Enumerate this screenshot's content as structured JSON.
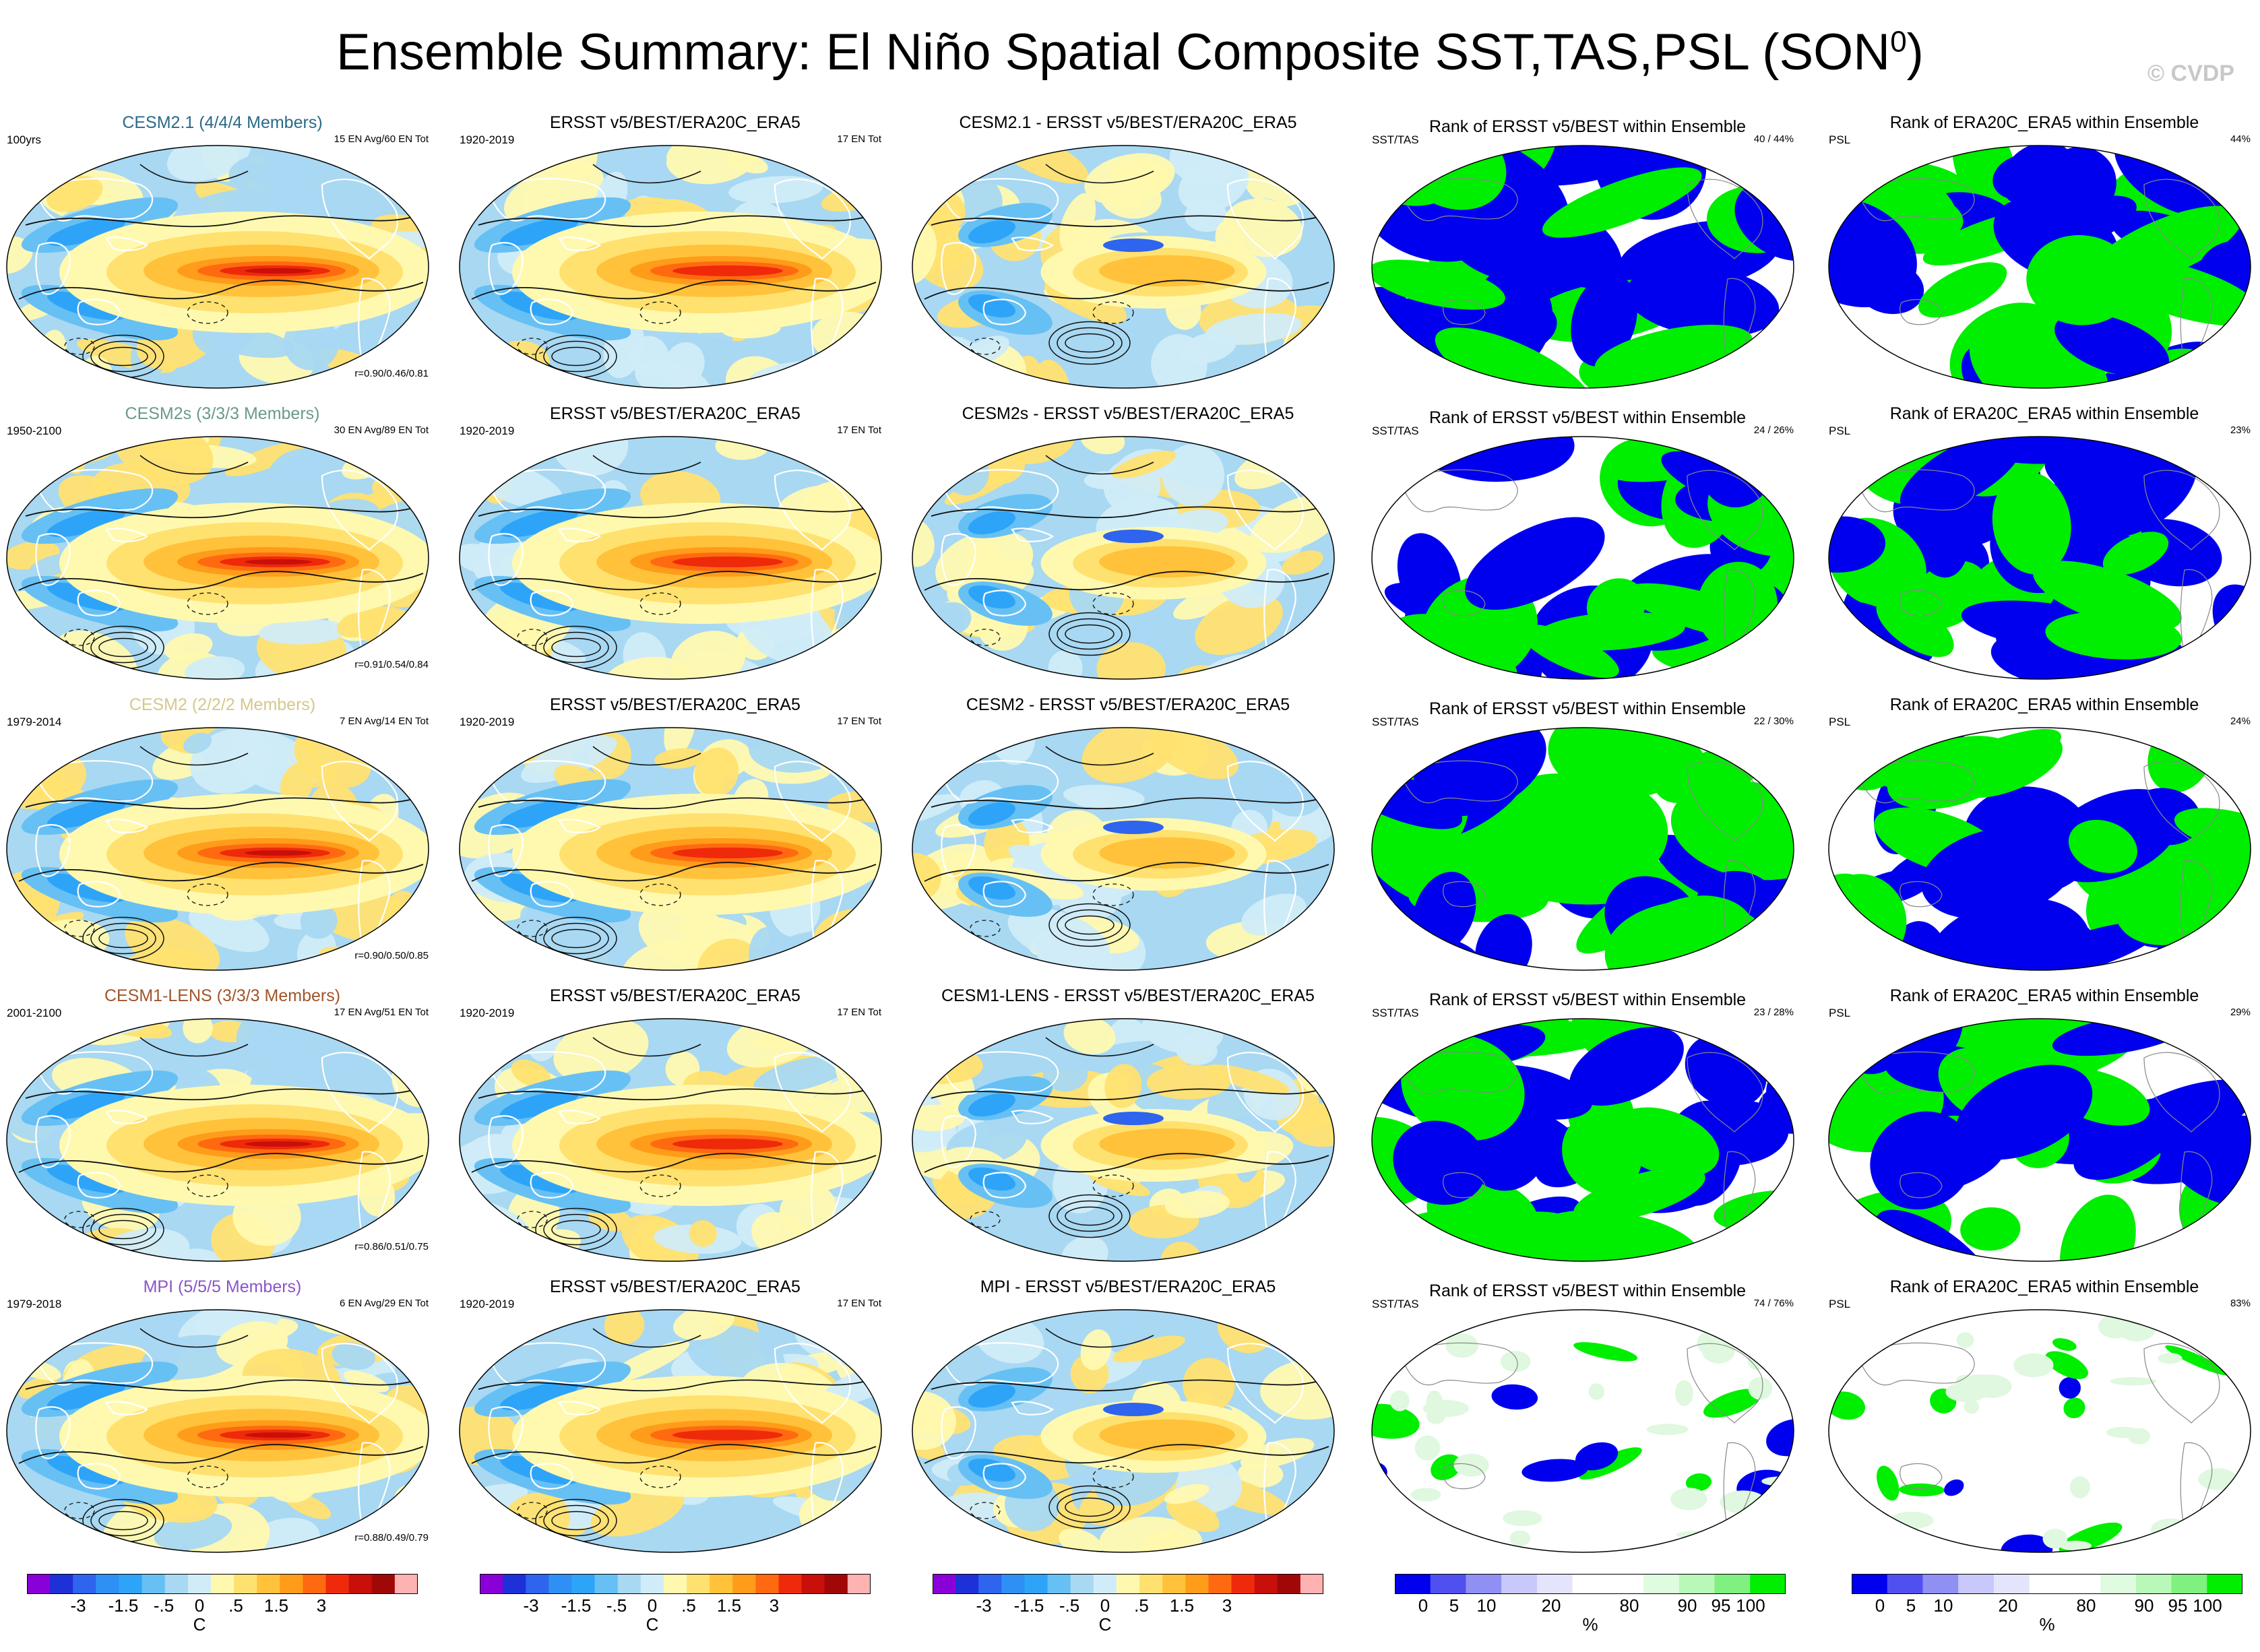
{
  "title": {
    "main": "Ensemble Summary: El Niño Spatial Composite SST,TAS,PSL (SON",
    "sup": "0",
    "close": ")"
  },
  "copyright": "© CVDP",
  "colors": {
    "cesm21": "#2a6a8a",
    "cesm2s": "#6a9a8a",
    "cesm2": "#d6c88a",
    "cesm1": "#a0552a",
    "mpi": "#8a55c8",
    "warm": [
      "#fff9b0",
      "#ffe170",
      "#ffc23a",
      "#ff9c1a",
      "#ff6a10",
      "#ee2a0a",
      "#c80f0a",
      "#a00808",
      "#ffb2b2"
    ],
    "cool": [
      "#9000d0",
      "#1e30d8",
      "#2e64ee",
      "#2ea4f8",
      "#66c0f4",
      "#a8d8f2",
      "#d0ecf8"
    ],
    "rank": {
      "low": "#0000ee",
      "mid": "#ffffff",
      "high": "#00ee00"
    }
  },
  "rows": [
    {
      "model_label": "CESM2.1 (4/4/4 Members)",
      "model_color": "#2a6a8a",
      "diff_name": "CESM2.1",
      "period": "100yrs",
      "en_info": "15 EN Avg/60 EN Tot",
      "corr": "r=0.90/0.46/0.81",
      "obs_period": "1920-2019",
      "obs_en": "17 EN Tot",
      "rank_sst": "40 /  44%",
      "rank_psl": "44%"
    },
    {
      "model_label": "CESM2s (3/3/3 Members)",
      "model_color": "#6a9a8a",
      "diff_name": "CESM2s",
      "period": "1950-2100",
      "en_info": "30 EN Avg/89 EN Tot",
      "corr": "r=0.91/0.54/0.84",
      "obs_period": "1920-2019",
      "obs_en": "17 EN Tot",
      "rank_sst": "24 /  26%",
      "rank_psl": "23%"
    },
    {
      "model_label": "CESM2 (2/2/2 Members)",
      "model_color": "#d6c88a",
      "diff_name": "CESM2",
      "period": "1979-2014",
      "en_info": "7 EN Avg/14 EN Tot",
      "corr": "r=0.90/0.50/0.85",
      "obs_period": "1920-2019",
      "obs_en": "17 EN Tot",
      "rank_sst": "22 /  30%",
      "rank_psl": "24%"
    },
    {
      "model_label": "CESM1-LENS (3/3/3 Members)",
      "model_color": "#a0552a",
      "diff_name": "CESM1-LENS",
      "period": "2001-2100",
      "en_info": "17 EN Avg/51 EN Tot",
      "corr": "r=0.86/0.51/0.75",
      "obs_period": "1920-2019",
      "obs_en": "17 EN Tot",
      "rank_sst": "23 /  28%",
      "rank_psl": "29%"
    },
    {
      "model_label": "MPI (5/5/5 Members)",
      "model_color": "#8a55c8",
      "diff_name": "MPI",
      "period": "1979-2018",
      "en_info": "6 EN Avg/29 EN Tot",
      "corr": "r=0.88/0.49/0.79",
      "obs_period": "1920-2019",
      "obs_en": "17 EN Tot",
      "rank_sst": "74 /  76%",
      "rank_psl": "83%"
    }
  ],
  "obs_title": "ERSST v5/BEST/ERA20C_ERA5",
  "diff_suffix": " - ERSST v5/BEST/ERA20C_ERA5",
  "rank_sst_title": "Rank of ERSST v5/BEST within Ensemble",
  "rank_psl_title": "Rank of ERA20C_ERA5 within Ensemble",
  "rank_sst_label": "SST/TAS",
  "rank_psl_label": "PSL",
  "colorbar_temp": {
    "ticks": [
      "-3",
      "-1.5",
      "-.5",
      "0",
      ".5",
      "1.5",
      "3"
    ],
    "unit": "C"
  },
  "colorbar_rank": {
    "ticks": [
      "0",
      "5",
      "10",
      "20",
      "80",
      "90",
      "95",
      "100"
    ],
    "unit": "%"
  }
}
